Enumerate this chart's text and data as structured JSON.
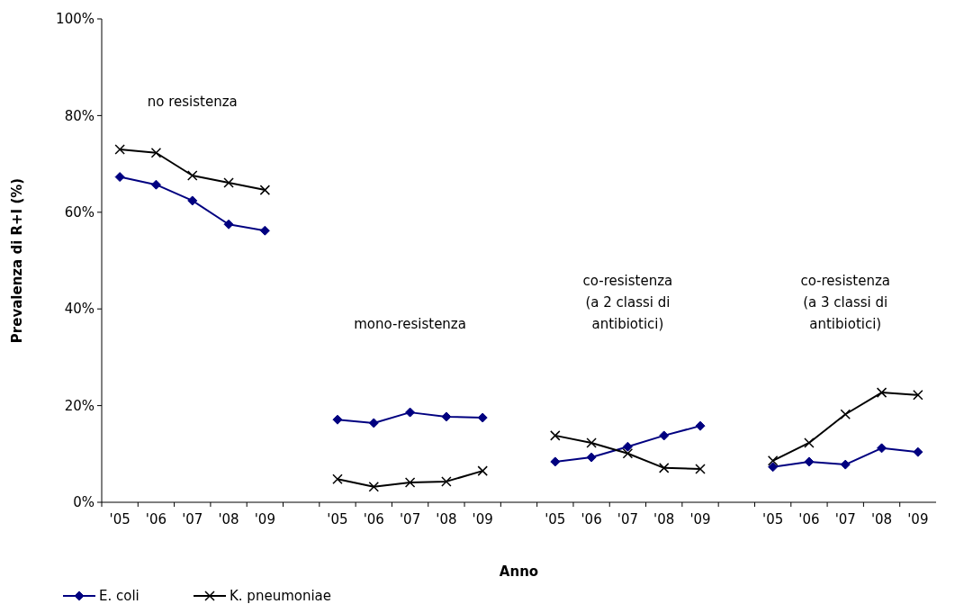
{
  "chart_data": {
    "type": "line",
    "xlabel": "Anno",
    "ylabel": "Prevalenza di R+I (%)",
    "categories": [
      "'05",
      "'06",
      "'07",
      "'08",
      "'09",
      null,
      "'05",
      "'06",
      "'07",
      "'08",
      "'09",
      null,
      "'05",
      "'06",
      "'07",
      "'08",
      "'09",
      null,
      "'05",
      "'06",
      "'07",
      "'08",
      "'09"
    ],
    "series": [
      {
        "name": "E. coli",
        "color": "#000080",
        "marker": "diamond",
        "values": [
          67.3,
          65.7,
          62.4,
          57.5,
          56.2,
          null,
          17.1,
          16.4,
          18.6,
          17.7,
          17.5,
          null,
          8.4,
          9.3,
          11.5,
          13.8,
          15.8,
          null,
          7.3,
          8.4,
          7.8,
          11.2,
          10.4
        ]
      },
      {
        "name": "K. pneumoniae",
        "color": "#000000",
        "marker": "cross",
        "values": [
          73.0,
          72.3,
          67.6,
          66.1,
          64.6,
          null,
          4.8,
          3.2,
          4.1,
          4.3,
          6.5,
          null,
          13.8,
          12.3,
          10.1,
          7.1,
          6.9,
          null,
          8.6,
          12.3,
          18.2,
          22.7,
          22.2
        ]
      }
    ],
    "ylim": [
      0,
      100
    ],
    "yticks": [
      {
        "value": 0,
        "label": "0%"
      },
      {
        "value": 20,
        "label": "20%"
      },
      {
        "value": 40,
        "label": "40%"
      },
      {
        "value": 60,
        "label": "60%"
      },
      {
        "value": 80,
        "label": "80%"
      },
      {
        "value": 100,
        "label": "100%"
      }
    ],
    "annotations": [
      "no resistenza",
      "mono-resistenza",
      "co-resistenza\n(a 2 classi di\nantibiotici)",
      "co-resistenza\n(a 3 classi di\nantibiotici)"
    ],
    "legend": "bottom left",
    "grid": false,
    "line_style": "solid"
  }
}
